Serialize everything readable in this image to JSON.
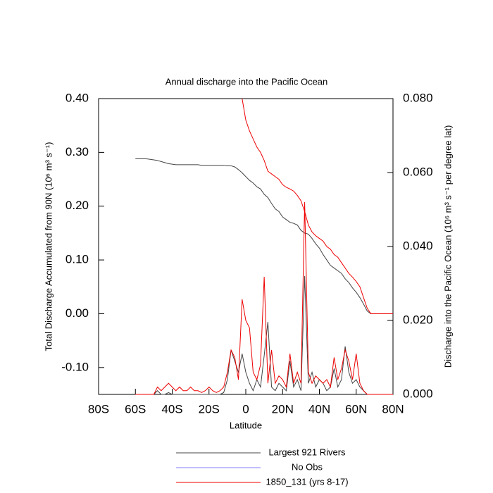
{
  "chart_data": {
    "type": "line",
    "title": "Annual discharge into the Pacific Ocean",
    "x_label": "Latitude",
    "y_label": "Total Discharge Accumulated from 90N (10⁶ m³ s⁻¹)",
    "y2_label": "Discharge into the Pacific Ocean (10⁶ m³ s⁻¹ per degree lat)",
    "xlim": [
      -80,
      80
    ],
    "xticks": [
      {
        "value": -80,
        "label": "80S"
      },
      {
        "value": -60,
        "label": "60S"
      },
      {
        "value": -40,
        "label": "40S"
      },
      {
        "value": -20,
        "label": "20S"
      },
      0,
      {
        "value": 20,
        "label": "20N"
      },
      {
        "value": 40,
        "label": "40N"
      },
      {
        "value": 60,
        "label": "60N"
      },
      {
        "value": 80,
        "label": "80N"
      }
    ],
    "ylim": [
      -0.15,
      0.4
    ],
    "yticks": [
      {
        "value": -0.1,
        "label": "-0.10"
      },
      {
        "value": 0,
        "label": "0.00"
      },
      {
        "value": 0.1,
        "label": "0.10"
      },
      {
        "value": 0.2,
        "label": "0.20"
      },
      {
        "value": 0.3,
        "label": "0.30"
      },
      {
        "value": 0.4,
        "label": "0.40"
      }
    ],
    "y2lim": [
      0,
      0.08
    ],
    "y2ticks": [
      {
        "value": 0,
        "label": "0.000"
      },
      {
        "value": 0.02,
        "label": "0.020"
      },
      {
        "value": 0.04,
        "label": "0.040"
      },
      {
        "value": 0.06,
        "label": "0.060"
      },
      {
        "value": 0.08,
        "label": "0.080"
      }
    ],
    "x": [
      -60,
      -58,
      -56,
      -54,
      -52,
      -50,
      -48,
      -46,
      -44,
      -42,
      -40,
      -38,
      -36,
      -34,
      -32,
      -30,
      -28,
      -26,
      -24,
      -22,
      -20,
      -18,
      -16,
      -14,
      -12,
      -10,
      -8,
      -6,
      -4,
      -2,
      0,
      2,
      4,
      6,
      8,
      10,
      12,
      14,
      16,
      18,
      20,
      22,
      24,
      26,
      28,
      30,
      32,
      34,
      36,
      38,
      40,
      42,
      44,
      46,
      48,
      50,
      52,
      54,
      56,
      58,
      60,
      62,
      64,
      66,
      68,
      70,
      72,
      74,
      76,
      78,
      80
    ],
    "series": [
      {
        "name": "Largest 921 Rivers",
        "color": "#444444",
        "values": [
          0.288,
          0.288,
          0.288,
          0.288,
          0.287,
          0.286,
          0.285,
          0.283,
          0.281,
          0.279,
          0.278,
          0.277,
          0.277,
          0.277,
          0.277,
          0.277,
          0.277,
          0.277,
          0.276,
          0.276,
          0.276,
          0.276,
          0.276,
          0.276,
          0.276,
          0.275,
          0.275,
          0.273,
          0.268,
          0.262,
          0.255,
          0.248,
          0.243,
          0.236,
          0.232,
          0.222,
          0.216,
          0.205,
          0.195,
          0.19,
          0.18,
          0.175,
          0.17,
          0.168,
          0.165,
          0.155,
          0.15,
          0.148,
          0.14,
          0.13,
          0.122,
          0.11,
          0.1,
          0.09,
          0.085,
          0.08,
          0.075,
          0.065,
          0.058,
          0.048,
          0.04,
          0.03,
          0.018,
          0.005,
          0,
          0,
          0,
          0,
          0,
          0,
          0
        ],
        "y2_values": [
          0,
          0,
          0,
          0,
          0,
          0,
          0.001,
          0,
          0,
          0.0005,
          0,
          0,
          0,
          0,
          0,
          0,
          0,
          0,
          0,
          0,
          0,
          0,
          0,
          0,
          0.0005,
          0.004,
          0.012,
          0.009,
          0.006,
          0.011,
          0.006,
          0.003,
          0.001,
          0.004,
          0.002,
          0.0105,
          0.0196,
          0.002,
          0.001,
          0.003,
          0.002,
          0.001,
          0.009,
          0.002,
          0.004,
          0.001,
          0.032,
          0.003,
          0.006,
          0.002,
          0.004,
          0.003,
          0.001,
          0.002,
          0.007,
          0.002,
          0.004,
          0.013,
          0.006,
          0.003,
          0.004,
          0.002,
          0.001,
          0,
          0,
          0,
          0,
          0,
          0,
          0,
          0
        ]
      },
      {
        "name": "No Obs",
        "color": "#7f7fff"
      },
      {
        "name": "1850_131 (yrs 8-17)",
        "color": "#ee0000",
        "values": [
          null,
          null,
          null,
          null,
          null,
          null,
          null,
          null,
          null,
          null,
          null,
          null,
          null,
          null,
          null,
          null,
          null,
          null,
          null,
          null,
          null,
          null,
          null,
          null,
          null,
          null,
          null,
          null,
          null,
          0.4,
          0.36,
          0.34,
          0.325,
          0.31,
          0.3,
          0.285,
          0.265,
          0.26,
          0.255,
          0.25,
          0.24,
          0.235,
          0.232,
          0.228,
          0.22,
          0.21,
          0.19,
          0.165,
          0.152,
          0.145,
          0.14,
          0.135,
          0.125,
          0.12,
          0.11,
          0.105,
          0.095,
          0.085,
          0.075,
          0.068,
          0.06,
          0.05,
          0.03,
          0.01,
          0,
          0,
          0,
          0,
          0,
          0,
          0
        ],
        "y2_values": [
          0,
          0,
          0,
          0,
          0,
          0,
          0.002,
          0.001,
          0.002,
          0.003,
          0.002,
          0.001,
          0.002,
          0.001,
          0.001,
          0.002,
          0.001,
          0.001,
          0.0005,
          0.001,
          0.002,
          0.001,
          0.0005,
          0.001,
          0.002,
          0.006,
          0.012,
          0.01,
          0.004,
          0.0257,
          0.02,
          0.018,
          0.006,
          0.004,
          0.008,
          0.0318,
          0.003,
          0.012,
          0.003,
          0.005,
          0.004,
          0.002,
          0.011,
          0.003,
          0.006,
          0.003,
          0.052,
          0.006,
          0.003,
          0.005,
          0.004,
          0.003,
          0.004,
          0.002,
          0.01,
          0.004,
          0.007,
          0.012,
          0.009,
          0.004,
          0.011,
          0.003,
          0.001,
          0,
          0,
          0,
          0,
          0,
          0,
          0,
          0
        ]
      }
    ]
  }
}
